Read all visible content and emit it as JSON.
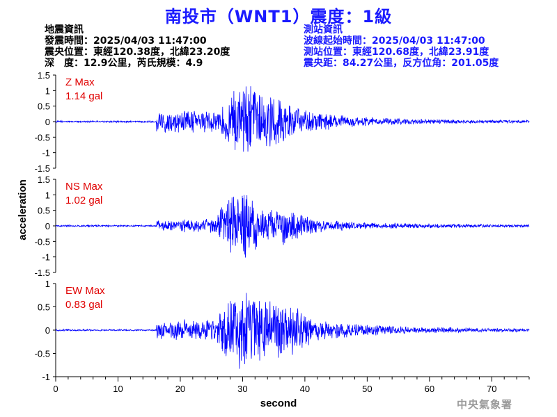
{
  "title": "南投市（WNT1）震度：1級",
  "quake_info": {
    "heading": "地震資訊",
    "time": "發震時間：2025/04/03 11:47:00",
    "epicenter": "震央位置：東經120.38度，北緯23.20度",
    "depth_magnitude": "深　度：12.9公里，芮氏規模：4.9"
  },
  "station_info": {
    "heading": "測站資訊",
    "wave_start": "波線起始時間：2025/04/03 11:47:00",
    "location": "測站位置：東經120.68度，北緯23.91度",
    "distance_azimuth": "震央距：84.27公里，反方位角：201.05度"
  },
  "watermark": "中央氣象署",
  "colors": {
    "title": "#1a1aff",
    "trace": "#0000ff",
    "label": "#e00000",
    "axis": "#000000",
    "station_info": "#1a1aff",
    "watermark": "#9a9a9a"
  },
  "chart_data": {
    "type": "line",
    "xlabel": "second",
    "ylabel": "acceleration",
    "xlim": [
      0,
      76
    ],
    "x_ticks": [
      0,
      10,
      20,
      30,
      40,
      50,
      60,
      70
    ],
    "y_ticks": [
      -1.5,
      -1,
      -0.5,
      0,
      0.5,
      1,
      1.5
    ],
    "y_tick_labels": [
      "-1.5",
      "-1",
      "-0.5",
      "0",
      "0.5",
      "1",
      "1.5"
    ],
    "bottom_y_ticks": [
      -1,
      -0.5,
      0,
      0.5,
      1
    ],
    "bottom_y_tick_labels": [
      "-1",
      "-0.5",
      "0",
      "0.5",
      "1"
    ],
    "grid": false,
    "panels": [
      {
        "component": "Z",
        "label": "Z Max",
        "max_text": "1.14 gal",
        "max_gal": 1.14,
        "ylim": [
          -1.5,
          1.5
        ]
      },
      {
        "component": "NS",
        "label": "NS Max",
        "max_text": "1.02 gal",
        "max_gal": 1.02,
        "ylim": [
          -1.5,
          1.5
        ]
      },
      {
        "component": "EW",
        "label": "EW Max",
        "max_text": "0.83 gal",
        "max_gal": 0.83,
        "ylim": [
          -1,
          1
        ]
      }
    ]
  }
}
